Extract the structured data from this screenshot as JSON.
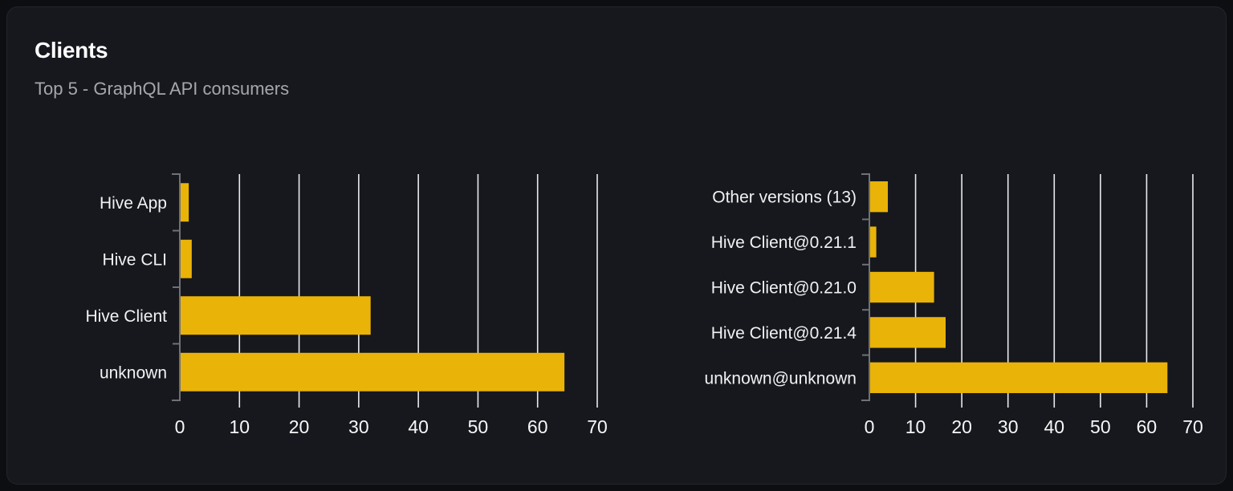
{
  "card": {
    "title": "Clients",
    "subtitle": "Top 5 - GraphQL API consumers"
  },
  "colors": {
    "page_bg": "#0c0e11",
    "card_bg": "#16181d",
    "bar": "#eab308",
    "grid": "#e8eaef",
    "axis": "#6e7177",
    "category_label": "#f0f1f3",
    "tick_label": "#f6f7f8",
    "title": "#ffffff",
    "subtitle": "#a5a7ac"
  },
  "chart_data": [
    {
      "type": "bar",
      "orientation": "horizontal",
      "title": "",
      "xlabel": "",
      "ylabel": "",
      "categories": [
        "Hive App",
        "Hive CLI",
        "Hive Client",
        "unknown"
      ],
      "values": [
        1.5,
        2,
        32,
        64.5
      ],
      "xlim": [
        0,
        70
      ],
      "xticks": [
        0,
        10,
        20,
        30,
        40,
        50,
        60,
        70
      ],
      "grid": true,
      "legend": false
    },
    {
      "type": "bar",
      "orientation": "horizontal",
      "title": "",
      "xlabel": "",
      "ylabel": "",
      "categories": [
        "Other versions (13)",
        "Hive Client@0.21.1",
        "Hive Client@0.21.0",
        "Hive Client@0.21.4",
        "unknown@unknown"
      ],
      "values": [
        4,
        1.5,
        14,
        16.5,
        64.5
      ],
      "xlim": [
        0,
        70
      ],
      "xticks": [
        0,
        10,
        20,
        30,
        40,
        50,
        60,
        70
      ],
      "grid": true,
      "legend": false
    }
  ]
}
